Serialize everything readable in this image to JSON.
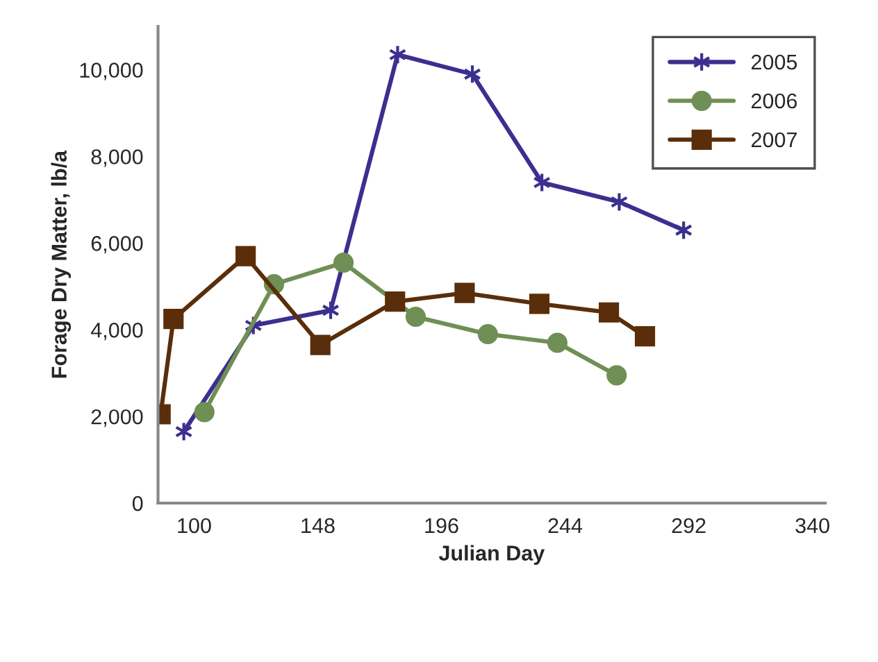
{
  "chart_data": {
    "type": "line",
    "xlabel": "Julian Day",
    "ylabel": "Forage Dry Matter, lb/a",
    "xlim": [
      86,
      345
    ],
    "xticks": [
      100,
      148,
      196,
      244,
      292,
      340
    ],
    "ylim": [
      0,
      11000
    ],
    "yticks": [
      {
        "value": 0,
        "label": "0"
      },
      {
        "value": 2000,
        "label": "2,000"
      },
      {
        "value": 4000,
        "label": "4,000"
      },
      {
        "value": 6000,
        "label": "6,000"
      },
      {
        "value": 8000,
        "label": "8,000"
      },
      {
        "value": 10000,
        "label": "10,000"
      }
    ],
    "grid": false,
    "legend": "top right",
    "line_style": "solid",
    "series": [
      {
        "name": "2005",
        "color": "#3b2f8f",
        "marker": "cross",
        "x": [
          96,
          123,
          153,
          179,
          208,
          235,
          265,
          290
        ],
        "values": [
          1650,
          4100,
          4450,
          10350,
          9900,
          7400,
          6950,
          6300
        ]
      },
      {
        "name": "2006",
        "color": "#6f8f55",
        "marker": "circle",
        "x": [
          104,
          131,
          158,
          186,
          214,
          241,
          264
        ],
        "values": [
          2100,
          5050,
          5550,
          4300,
          3900,
          3700,
          2950
        ]
      },
      {
        "name": "2007",
        "color": "#5a2e0a",
        "marker": "square",
        "x": [
          87,
          92,
          120,
          149,
          178,
          205,
          234,
          261,
          275
        ],
        "values": [
          2050,
          4250,
          5700,
          3650,
          4650,
          4850,
          4600,
          4400,
          3850
        ]
      }
    ]
  }
}
